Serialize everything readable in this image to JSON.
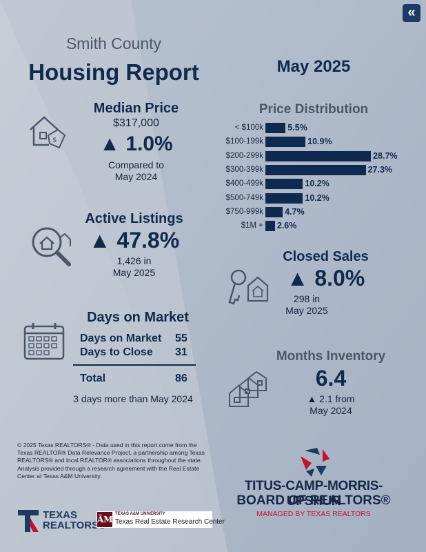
{
  "header": {
    "county": "Smith County",
    "title": "Housing Report",
    "period": "May 2025"
  },
  "median_price": {
    "heading": "Median Price",
    "value": "$317,000",
    "change": "▲ 1.0%",
    "compare_line1": "Compared to",
    "compare_line2": "May 2024",
    "icon": "house-price-tag-icon"
  },
  "active_listings": {
    "heading": "Active Listings",
    "change": "▲ 47.8%",
    "line1": "1,426 in",
    "line2": "May 2025",
    "icon": "magnifier-house-icon"
  },
  "days_on_market": {
    "heading": "Days on Market",
    "rows": [
      {
        "label": "Days on Market",
        "value": "55"
      },
      {
        "label": "Days to Close",
        "value": "31"
      }
    ],
    "total_label": "Total",
    "total_value": "86",
    "note": "3 days more than May 2024",
    "icon": "calendar-icon"
  },
  "closed_sales": {
    "heading": "Closed Sales",
    "change": "▲ 8.0%",
    "line1": "298 in",
    "line2": "May 2025",
    "icon": "house-key-icon"
  },
  "months_inventory": {
    "heading": "Months Inventory",
    "value": "6.4",
    "line1": "▲ 2.1 from",
    "line2": "May 2024",
    "icon": "houses-row-icon"
  },
  "chart_data": {
    "type": "bar",
    "orientation": "horizontal",
    "title": "Price Distribution",
    "categories": [
      "< $100k",
      "$100-199k",
      "$200-299k",
      "$300-399k",
      "$400-499k",
      "$500-749k",
      "$750-999k",
      "$1M +"
    ],
    "values": [
      5.5,
      10.9,
      28.7,
      27.3,
      10.2,
      10.2,
      4.7,
      2.6
    ],
    "value_labels": [
      "5.5%",
      "10.9%",
      "28.7%",
      "27.3%",
      "10.2%",
      "10.2%",
      "4.7%",
      "2.6%"
    ],
    "unit": "%",
    "grid": false,
    "bar_color": "#0f2a4f"
  },
  "footer": {
    "disclaimer": "© 2025 Texas REALTORS® - Data used in this report come from the Texas REALTOR® Data Relevance Project, a partnership among Texas REALTORS® and local REALTOR® associations throughout the state. Analysis provided through a research agreement with the Real Estate Center at Texas A&M University.",
    "board_name_line1": "TITUS-CAMP-MORRIS-UPSHUR",
    "board_name_line2": "BOARD OF REALTORS®",
    "board_managed": "MANAGED BY TEXAS REALTORS",
    "texas_realtors_line1": "TEXAS",
    "texas_realtors_line2": "REALTORS®",
    "tamu_small": "TEXAS A&M UNIVERSITY",
    "tamu_center": "Texas Real Estate Research Center",
    "tamu_mark": "ĀM"
  },
  "nav": {
    "back_glyph": "«"
  },
  "colors": {
    "navy": "#112a4c",
    "slate": "#4b5668",
    "red": "#c8102e"
  }
}
